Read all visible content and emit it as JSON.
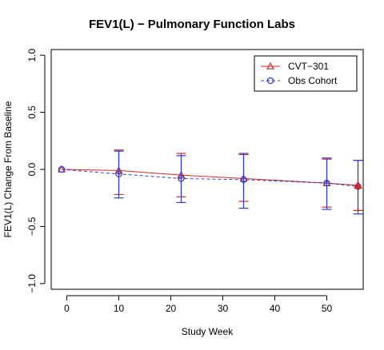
{
  "chart_data": {
    "type": "line",
    "title": "FEV1(L) − Pulmonary Function Labs",
    "xlabel": "Study Week",
    "ylabel": "FEV1(L) Change From Baseline",
    "xlim": [
      -3,
      57
    ],
    "ylim": [
      -1.05,
      1.05
    ],
    "xticks": [
      0,
      10,
      20,
      30,
      40,
      50
    ],
    "yticks": [
      -1.0,
      -0.5,
      0.0,
      0.5,
      1.0
    ],
    "ytick_labels": [
      "−1.0",
      "−0.5",
      "0.0",
      "0.5",
      "1.0"
    ],
    "grid": false,
    "legend_position": "top-right",
    "series": [
      {
        "name": "CVT−301",
        "color": "#d62728",
        "line_style": "solid",
        "marker": "triangle",
        "x": [
          -1,
          10,
          22,
          34,
          50,
          56
        ],
        "y": [
          0.0,
          -0.01,
          -0.05,
          -0.08,
          -0.12,
          -0.14
        ],
        "lower": [
          0.0,
          -0.22,
          -0.24,
          -0.28,
          -0.33,
          -0.36
        ],
        "upper": [
          0.0,
          0.17,
          0.14,
          0.13,
          0.09,
          0.08
        ]
      },
      {
        "name": "Obs Cohort",
        "color": "#2b3fd1",
        "line_style": "dashed",
        "marker": "circle",
        "x": [
          -1,
          10,
          22,
          34,
          50,
          56
        ],
        "y": [
          0.0,
          -0.04,
          -0.08,
          -0.09,
          -0.12,
          -0.15
        ],
        "lower": [
          0.0,
          -0.25,
          -0.29,
          -0.34,
          -0.35,
          -0.39
        ],
        "upper": [
          0.0,
          0.16,
          0.12,
          0.14,
          0.1,
          0.08
        ]
      }
    ]
  }
}
